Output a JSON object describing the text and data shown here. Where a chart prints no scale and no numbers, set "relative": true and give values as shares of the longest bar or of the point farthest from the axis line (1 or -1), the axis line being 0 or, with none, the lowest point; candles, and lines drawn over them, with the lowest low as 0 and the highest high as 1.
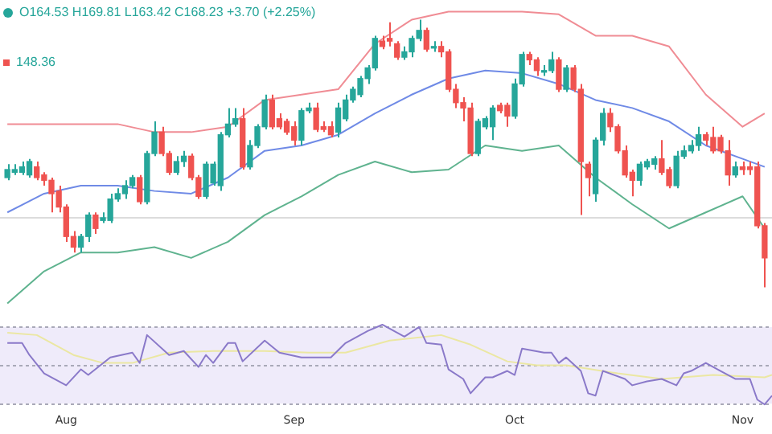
{
  "chart_data": [
    {
      "type": "candlestick",
      "relative": true,
      "grid": false,
      "tick_labels": false,
      "xlim": [
        "--07-23",
        "--11-05"
      ],
      "annotations": [
        "O164.53 H169.81 L163.42 C168.23 +3.70 (+2.25%)",
        "148.36"
      ],
      "x": [
        "--07-24",
        "--07-25",
        "--07-26",
        "--07-27",
        "--07-28",
        "--07-29",
        "--07-30",
        "--07-31",
        "--08-01",
        "--08-02",
        "--08-03",
        "--08-04",
        "--08-05",
        "--08-06",
        "--08-07",
        "--08-08",
        "--08-09",
        "--08-10",
        "--08-11",
        "--08-12",
        "--08-13",
        "--08-14",
        "--08-15",
        "--08-16",
        "--08-17",
        "--08-18",
        "--08-19",
        "--08-20",
        "--08-21",
        "--08-22",
        "--08-23",
        "--08-24",
        "--08-25",
        "--08-26",
        "--08-27",
        "--08-28",
        "--08-29",
        "--08-30",
        "--08-31",
        "--09-01",
        "--09-02",
        "--09-03",
        "--09-04",
        "--09-05",
        "--09-06",
        "--09-07",
        "--09-08",
        "--09-09",
        "--09-10",
        "--09-11",
        "--09-12",
        "--09-13",
        "--09-14",
        "--09-15",
        "--09-16",
        "--09-17",
        "--09-18",
        "--09-19",
        "--09-20",
        "--09-21",
        "--09-22",
        "--09-23",
        "--09-24",
        "--09-25",
        "--09-26",
        "--09-27",
        "--09-28",
        "--09-29",
        "--09-30",
        "--10-01",
        "--10-02",
        "--10-03",
        "--10-04",
        "--10-05",
        "--10-06",
        "--10-07",
        "--10-08",
        "--10-09",
        "--10-10",
        "--10-11",
        "--10-12",
        "--10-13",
        "--10-14",
        "--10-15",
        "--10-16",
        "--10-17",
        "--10-18",
        "--10-19",
        "--10-20",
        "--10-21",
        "--10-22",
        "--10-23",
        "--10-24",
        "--10-25",
        "--10-26",
        "--10-27",
        "--10-28",
        "--10-29",
        "--10-30",
        "--10-31",
        "--11-01",
        "--11-02",
        "--11-03",
        "--11-04"
      ],
      "ohlc": [
        [
          0.41,
          0.46,
          0.4,
          0.44
        ],
        [
          0.43,
          0.46,
          0.42,
          0.44
        ],
        [
          0.43,
          0.47,
          0.42,
          0.45
        ],
        [
          0.42,
          0.48,
          0.41,
          0.47
        ],
        [
          0.45,
          0.47,
          0.4,
          0.41
        ],
        [
          0.42,
          0.43,
          0.38,
          0.4
        ],
        [
          0.4,
          0.41,
          0.28,
          0.35
        ],
        [
          0.36,
          0.38,
          0.28,
          0.3
        ],
        [
          0.3,
          0.31,
          0.17,
          0.19
        ],
        [
          0.19,
          0.21,
          0.13,
          0.15
        ],
        [
          0.15,
          0.2,
          0.13,
          0.19
        ],
        [
          0.19,
          0.28,
          0.17,
          0.27
        ],
        [
          0.27,
          0.28,
          0.2,
          0.22
        ],
        [
          0.25,
          0.28,
          0.24,
          0.26
        ],
        [
          0.25,
          0.35,
          0.24,
          0.33
        ],
        [
          0.33,
          0.37,
          0.32,
          0.35
        ],
        [
          0.35,
          0.4,
          0.33,
          0.38
        ],
        [
          0.38,
          0.42,
          0.37,
          0.41
        ],
        [
          0.41,
          0.42,
          0.31,
          0.32
        ],
        [
          0.32,
          0.51,
          0.31,
          0.5
        ],
        [
          0.5,
          0.62,
          0.49,
          0.58
        ],
        [
          0.58,
          0.6,
          0.49,
          0.5
        ],
        [
          0.5,
          0.51,
          0.42,
          0.43
        ],
        [
          0.43,
          0.49,
          0.42,
          0.47
        ],
        [
          0.47,
          0.51,
          0.45,
          0.49
        ],
        [
          0.49,
          0.5,
          0.4,
          0.41
        ],
        [
          0.41,
          0.42,
          0.33,
          0.34
        ],
        [
          0.34,
          0.47,
          0.33,
          0.46
        ],
        [
          0.39,
          0.47,
          0.38,
          0.46
        ],
        [
          0.38,
          0.58,
          0.36,
          0.57
        ],
        [
          0.57,
          0.67,
          0.56,
          0.61
        ],
        [
          0.61,
          0.67,
          0.6,
          0.63
        ],
        [
          0.63,
          0.67,
          0.44,
          0.45
        ],
        [
          0.45,
          0.55,
          0.44,
          0.53
        ],
        [
          0.53,
          0.61,
          0.52,
          0.6
        ],
        [
          0.6,
          0.72,
          0.59,
          0.7
        ],
        [
          0.7,
          0.72,
          0.59,
          0.6
        ],
        [
          0.63,
          0.65,
          0.59,
          0.6
        ],
        [
          0.62,
          0.63,
          0.57,
          0.58
        ],
        [
          0.6,
          0.62,
          0.53,
          0.55
        ],
        [
          0.55,
          0.67,
          0.53,
          0.66
        ],
        [
          0.66,
          0.69,
          0.65,
          0.67
        ],
        [
          0.67,
          0.69,
          0.58,
          0.59
        ],
        [
          0.6,
          0.62,
          0.58,
          0.59
        ],
        [
          0.6,
          0.62,
          0.56,
          0.57
        ],
        [
          0.58,
          0.69,
          0.56,
          0.67
        ],
        [
          0.63,
          0.72,
          0.62,
          0.7
        ],
        [
          0.7,
          0.75,
          0.69,
          0.74
        ],
        [
          0.72,
          0.79,
          0.71,
          0.78
        ],
        [
          0.78,
          0.83,
          0.76,
          0.82
        ],
        [
          0.82,
          0.94,
          0.81,
          0.93
        ],
        [
          0.92,
          0.94,
          0.89,
          0.9
        ],
        [
          0.93,
          0.99,
          0.9,
          0.92
        ],
        [
          0.91,
          0.92,
          0.85,
          0.86
        ],
        [
          0.86,
          0.9,
          0.85,
          0.88
        ],
        [
          0.88,
          0.94,
          0.86,
          0.93
        ],
        [
          0.93,
          1.0,
          0.92,
          0.96
        ],
        [
          0.96,
          0.97,
          0.88,
          0.89
        ],
        [
          0.9,
          0.92,
          0.88,
          0.9
        ],
        [
          0.9,
          0.92,
          0.86,
          0.88
        ],
        [
          0.88,
          0.89,
          0.73,
          0.74
        ],
        [
          0.74,
          0.76,
          0.67,
          0.69
        ],
        [
          0.69,
          0.71,
          0.62,
          0.67
        ],
        [
          0.67,
          0.69,
          0.49,
          0.5
        ],
        [
          0.5,
          0.63,
          0.49,
          0.62
        ],
        [
          0.6,
          0.64,
          0.59,
          0.63
        ],
        [
          0.6,
          0.68,
          0.55,
          0.67
        ],
        [
          0.68,
          0.69,
          0.65,
          0.66
        ],
        [
          0.68,
          0.69,
          0.6,
          0.64
        ],
        [
          0.64,
          0.78,
          0.63,
          0.76
        ],
        [
          0.76,
          0.88,
          0.75,
          0.87
        ],
        [
          0.87,
          0.88,
          0.83,
          0.85
        ],
        [
          0.85,
          0.86,
          0.79,
          0.81
        ],
        [
          0.81,
          0.83,
          0.79,
          0.81
        ],
        [
          0.81,
          0.88,
          0.8,
          0.85
        ],
        [
          0.85,
          0.86,
          0.73,
          0.74
        ],
        [
          0.74,
          0.83,
          0.73,
          0.82
        ],
        [
          0.82,
          0.83,
          0.73,
          0.74
        ],
        [
          0.74,
          0.76,
          0.27,
          0.47
        ],
        [
          0.46,
          0.47,
          0.34,
          0.41
        ],
        [
          0.35,
          0.56,
          0.32,
          0.55
        ],
        [
          0.55,
          0.67,
          0.53,
          0.65
        ],
        [
          0.65,
          0.67,
          0.58,
          0.6
        ],
        [
          0.6,
          0.61,
          0.5,
          0.51
        ],
        [
          0.51,
          0.53,
          0.41,
          0.42
        ],
        [
          0.43,
          0.44,
          0.34,
          0.4
        ],
        [
          0.4,
          0.47,
          0.38,
          0.46
        ],
        [
          0.45,
          0.48,
          0.44,
          0.47
        ],
        [
          0.46,
          0.49,
          0.44,
          0.48
        ],
        [
          0.48,
          0.55,
          0.42,
          0.43
        ],
        [
          0.44,
          0.45,
          0.37,
          0.38
        ],
        [
          0.38,
          0.51,
          0.37,
          0.49
        ],
        [
          0.49,
          0.53,
          0.48,
          0.51
        ],
        [
          0.51,
          0.55,
          0.5,
          0.53
        ],
        [
          0.53,
          0.6,
          0.51,
          0.57
        ],
        [
          0.57,
          0.58,
          0.53,
          0.55
        ],
        [
          0.56,
          0.6,
          0.5,
          0.51
        ],
        [
          0.56,
          0.57,
          0.5,
          0.51
        ],
        [
          0.51,
          0.55,
          0.38,
          0.42
        ],
        [
          0.42,
          0.47,
          0.41,
          0.45
        ],
        [
          0.45,
          0.47,
          0.42,
          0.44
        ],
        [
          0.45,
          0.47,
          0.42,
          0.44
        ],
        [
          0.45,
          0.47,
          0.22,
          0.23
        ],
        [
          0.23,
          0.24,
          0.0,
          0.11
        ]
      ],
      "colors": [
        "#26a69a",
        "#26a69a",
        "#26a69a",
        "#26a69a",
        "#ef5350",
        "#ef5350",
        "#ef5350",
        "#ef5350",
        "#ef5350",
        "#ef5350",
        "#26a69a",
        "#26a69a",
        "#ef5350",
        "#26a69a",
        "#26a69a",
        "#26a69a",
        "#26a69a",
        "#26a69a",
        "#ef5350",
        "#26a69a",
        "#26a69a",
        "#ef5350",
        "#ef5350",
        "#26a69a",
        "#26a69a",
        "#ef5350",
        "#ef5350",
        "#26a69a",
        "#26a69a",
        "#26a69a",
        "#26a69a",
        "#26a69a",
        "#ef5350",
        "#26a69a",
        "#26a69a",
        "#26a69a",
        "#ef5350",
        "#ef5350",
        "#ef5350",
        "#ef5350",
        "#26a69a",
        "#26a69a",
        "#ef5350",
        "#ef5350",
        "#ef5350",
        "#26a69a",
        "#26a69a",
        "#26a69a",
        "#26a69a",
        "#26a69a",
        "#26a69a",
        "#ef5350",
        "#ef5350",
        "#ef5350",
        "#26a69a",
        "#26a69a",
        "#26a69a",
        "#ef5350",
        "#26a69a",
        "#ef5350",
        "#ef5350",
        "#ef5350",
        "#ef5350",
        "#ef5350",
        "#26a69a",
        "#26a69a",
        "#26a69a",
        "#ef5350",
        "#ef5350",
        "#26a69a",
        "#26a69a",
        "#ef5350",
        "#ef5350",
        "#26a69a",
        "#26a69a",
        "#ef5350",
        "#26a69a",
        "#ef5350",
        "#ef5350",
        "#ef5350",
        "#26a69a",
        "#26a69a",
        "#ef5350",
        "#ef5350",
        "#ef5350",
        "#ef5350",
        "#26a69a",
        "#26a69a",
        "#26a69a",
        "#ef5350",
        "#ef5350",
        "#26a69a",
        "#26a69a",
        "#26a69a",
        "#26a69a",
        "#ef5350",
        "#ef5350",
        "#ef5350",
        "#ef5350",
        "#26a69a",
        "#ef5350",
        "#ef5350",
        "#ef5350",
        "#ef5350"
      ],
      "series": [
        {
          "type": "line",
          "color": "#f08c94",
          "x": [
            "--07-24",
            "--07-29",
            "--08-03",
            "--08-08",
            "--08-13",
            "--08-18",
            "--08-23",
            "--08-28",
            "--09-02",
            "--09-07",
            "--09-12",
            "--09-17",
            "--09-22",
            "--09-27",
            "--10-02",
            "--10-07",
            "--10-12",
            "--10-17",
            "--10-22",
            "--10-27",
            "--11-01",
            "--11-04"
          ],
          "values": [
            0.61,
            0.61,
            0.61,
            0.61,
            0.58,
            0.58,
            0.6,
            0.7,
            0.72,
            0.74,
            0.91,
            1.0,
            1.03,
            1.03,
            1.03,
            1.02,
            0.94,
            0.94,
            0.9,
            0.72,
            0.6,
            0.65
          ]
        },
        {
          "type": "line",
          "color": "#6f8ae6",
          "x": [
            "--07-24",
            "--07-29",
            "--08-03",
            "--08-08",
            "--08-13",
            "--08-18",
            "--08-23",
            "--08-28",
            "--09-02",
            "--09-07",
            "--09-12",
            "--09-17",
            "--09-22",
            "--09-27",
            "--10-02",
            "--10-07",
            "--10-12",
            "--10-17",
            "--10-22",
            "--10-27",
            "--11-01",
            "--11-04"
          ],
          "values": [
            0.28,
            0.35,
            0.38,
            0.38,
            0.36,
            0.35,
            0.41,
            0.51,
            0.53,
            0.57,
            0.65,
            0.72,
            0.78,
            0.81,
            0.8,
            0.76,
            0.7,
            0.67,
            0.62,
            0.53,
            0.48,
            0.45
          ]
        },
        {
          "type": "line",
          "color": "#5fb38f",
          "x": [
            "--07-24",
            "--07-29",
            "--08-03",
            "--08-08",
            "--08-13",
            "--08-18",
            "--08-23",
            "--08-28",
            "--09-02",
            "--09-07",
            "--09-12",
            "--09-17",
            "--09-22",
            "--09-27",
            "--10-02",
            "--10-07",
            "--10-12",
            "--10-17",
            "--10-22",
            "--10-27",
            "--11-01",
            "--11-04"
          ],
          "values": [
            -0.06,
            0.06,
            0.13,
            0.13,
            0.15,
            0.11,
            0.17,
            0.27,
            0.34,
            0.42,
            0.47,
            0.43,
            0.44,
            0.53,
            0.51,
            0.53,
            0.41,
            0.31,
            0.22,
            0.28,
            0.34,
            0.22
          ]
        }
      ],
      "ref_lines": [
        {
          "axis": "y",
          "value": 0.26,
          "color": "#dcdcdc"
        }
      ]
    },
    {
      "type": "line",
      "relative": true,
      "grid": false,
      "tick_labels": "x",
      "xlim": [
        "--07-23",
        "--11-05"
      ],
      "xticks": [
        {
          "value": "--08-01",
          "label": "Aug"
        },
        {
          "value": "--09-01",
          "label": "Sep"
        },
        {
          "value": "--10-01",
          "label": "Oct"
        },
        {
          "value": "--11-01",
          "label": "Nov"
        }
      ],
      "bands": [
        {
          "axis": "y",
          "from": 0.01,
          "to": 0.97,
          "color": "#efebfa"
        }
      ],
      "ref_lines": [
        {
          "axis": "y",
          "value": 0.97,
          "color": "#a9a9b8",
          "line_style": "dashed"
        },
        {
          "axis": "y",
          "value": 0.49,
          "color": "#a9a9b8",
          "line_style": "dashed"
        },
        {
          "axis": "y",
          "value": 0.01,
          "color": "#a9a9b8",
          "line_style": "dashed"
        }
      ],
      "series": [
        {
          "color": "#8a79c9",
          "x": [
            "--07-24",
            "--07-26",
            "--07-27",
            "--07-29",
            "--08-01",
            "--08-03",
            "--08-04",
            "--08-07",
            "--08-10",
            "--08-11",
            "--08-12",
            "--08-15",
            "--08-17",
            "--08-19",
            "--08-20",
            "--08-21",
            "--08-23",
            "--08-24",
            "--08-25",
            "--08-28",
            "--08-30",
            "--09-02",
            "--09-04",
            "--09-06",
            "--09-08",
            "--09-11",
            "--09-13",
            "--09-14",
            "--09-16",
            "--09-18",
            "--09-19",
            "--09-21",
            "--09-22",
            "--09-24",
            "--09-25",
            "--09-27",
            "--09-28",
            "--09-30",
            "--10-01",
            "--10-02",
            "--10-05",
            "--10-06",
            "--10-07",
            "--10-08",
            "--10-10",
            "--10-11",
            "--10-12",
            "--10-13",
            "--10-16",
            "--10-17",
            "--10-19",
            "--10-21",
            "--10-23",
            "--10-24",
            "--10-25",
            "--10-27",
            "--10-29",
            "--10-31",
            "--11-02",
            "--11-03",
            "--11-04",
            "--11-05"
          ],
          "values": [
            0.77,
            0.77,
            0.62,
            0.39,
            0.24,
            0.44,
            0.37,
            0.59,
            0.65,
            0.52,
            0.87,
            0.62,
            0.67,
            0.47,
            0.62,
            0.52,
            0.77,
            0.77,
            0.54,
            0.8,
            0.65,
            0.59,
            0.59,
            0.59,
            0.77,
            0.92,
            1.0,
            0.95,
            0.85,
            0.97,
            0.77,
            0.75,
            0.44,
            0.32,
            0.14,
            0.34,
            0.34,
            0.42,
            0.37,
            0.7,
            0.65,
            0.65,
            0.52,
            0.59,
            0.42,
            0.14,
            0.11,
            0.42,
            0.32,
            0.24,
            0.29,
            0.32,
            0.24,
            0.39,
            0.42,
            0.52,
            0.42,
            0.32,
            0.32,
            0.06,
            0.0,
            0.11
          ]
        },
        {
          "color": "#ebe7a2",
          "x": [
            "--07-24",
            "--07-28",
            "--08-02",
            "--08-06",
            "--08-10",
            "--08-15",
            "--08-21",
            "--08-28",
            "--09-03",
            "--09-08",
            "--09-14",
            "--09-21",
            "--09-25",
            "--09-30",
            "--10-04",
            "--10-08",
            "--10-15",
            "--10-21",
            "--10-28",
            "--11-04",
            "--11-05"
          ],
          "values": [
            0.9,
            0.87,
            0.62,
            0.52,
            0.52,
            0.65,
            0.67,
            0.67,
            0.65,
            0.65,
            0.8,
            0.87,
            0.75,
            0.54,
            0.49,
            0.49,
            0.39,
            0.32,
            0.37,
            0.34,
            0.37
          ]
        }
      ]
    }
  ]
}
